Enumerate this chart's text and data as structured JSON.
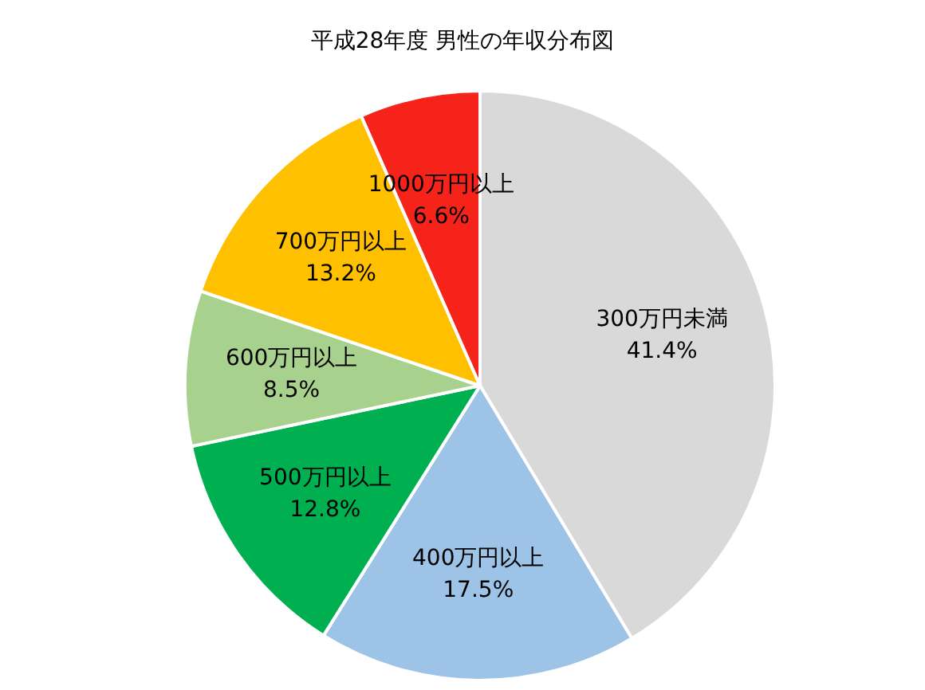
{
  "chart_data": {
    "type": "pie",
    "title": "平成28年度 男性の年収分布図",
    "categories": [
      "300万円未満",
      "400万円以上",
      "500万円以上",
      "600万円以上",
      "700万円以上",
      "1000万円以上"
    ],
    "values": [
      41.4,
      17.5,
      12.8,
      8.5,
      13.2,
      6.6
    ],
    "colors": [
      "#d9d9d9",
      "#9dc3e6",
      "#00b050",
      "#a9d18e",
      "#ffc000",
      "#f5231a"
    ],
    "value_labels": [
      "41.4%",
      "17.5%",
      "12.8%",
      "8.5%",
      "13.2%",
      "6.6%"
    ],
    "legend": false
  }
}
